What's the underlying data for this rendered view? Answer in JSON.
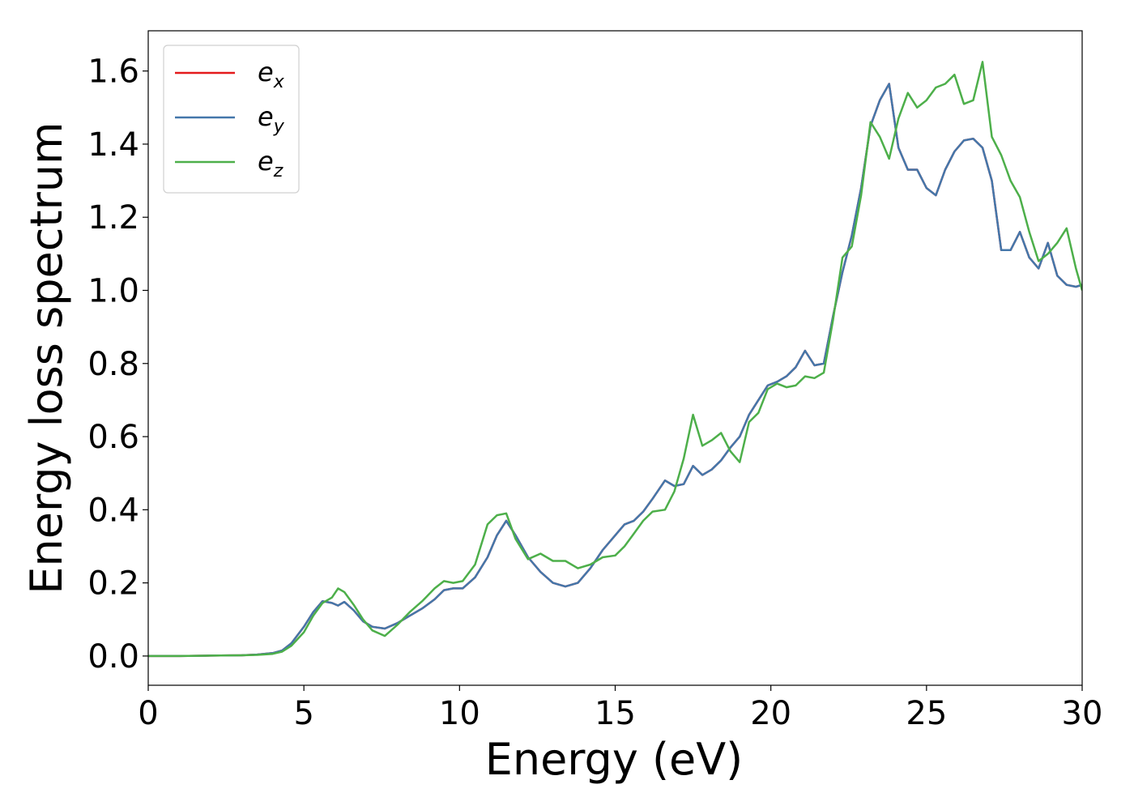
{
  "chart_data": {
    "type": "line",
    "xlabel": "Energy (eV)",
    "ylabel": "Energy loss spectrum",
    "xlim": [
      0,
      30
    ],
    "ylim": [
      -0.08,
      1.71
    ],
    "xticks": [
      0,
      5,
      10,
      15,
      20,
      25,
      30
    ],
    "xtick_labels": [
      "0",
      "5",
      "10",
      "15",
      "20",
      "25",
      "30"
    ],
    "yticks": [
      0.0,
      0.2,
      0.4,
      0.6,
      0.8,
      1.0,
      1.2,
      1.4,
      1.6
    ],
    "ytick_labels": [
      "0.0",
      "0.2",
      "0.4",
      "0.6",
      "0.8",
      "1.0",
      "1.2",
      "1.4",
      "1.6"
    ],
    "grid": false,
    "legend_position": "top-left",
    "series": [
      {
        "name": "e",
        "sub": "x",
        "color": "#e41a1c",
        "x": [
          0,
          1,
          2,
          3,
          3.5,
          4,
          4.3,
          4.6,
          5,
          5.3,
          5.6,
          5.9,
          6.1,
          6.3,
          6.6,
          6.9,
          7.2,
          7.6,
          8,
          8.4,
          8.8,
          9.2,
          9.5,
          9.8,
          10.1,
          10.5,
          10.9,
          11.2,
          11.5,
          11.8,
          12.2,
          12.6,
          13,
          13.4,
          13.8,
          14.2,
          14.6,
          15,
          15.3,
          15.6,
          15.9,
          16.2,
          16.6,
          16.9,
          17.2,
          17.5,
          17.8,
          18.1,
          18.4,
          18.7,
          19,
          19.3,
          19.6,
          19.9,
          20.2,
          20.5,
          20.8,
          21.1,
          21.4,
          21.7,
          22,
          22.3,
          22.6,
          22.9,
          23.2,
          23.5,
          23.8,
          24.1,
          24.4,
          24.7,
          25,
          25.3,
          25.6,
          25.9,
          26.2,
          26.5,
          26.8,
          27.1,
          27.4,
          27.7,
          28,
          28.3,
          28.6,
          28.9,
          29.2,
          29.5,
          29.8,
          30
        ],
        "values": [
          0.0,
          0.0,
          0.001,
          0.002,
          0.004,
          0.008,
          0.015,
          0.035,
          0.08,
          0.12,
          0.15,
          0.145,
          0.138,
          0.148,
          0.125,
          0.095,
          0.08,
          0.075,
          0.09,
          0.11,
          0.13,
          0.155,
          0.18,
          0.185,
          0.185,
          0.215,
          0.27,
          0.33,
          0.37,
          0.33,
          0.27,
          0.23,
          0.2,
          0.19,
          0.2,
          0.24,
          0.29,
          0.33,
          0.36,
          0.37,
          0.395,
          0.43,
          0.48,
          0.465,
          0.47,
          0.52,
          0.495,
          0.51,
          0.535,
          0.57,
          0.6,
          0.66,
          0.7,
          0.74,
          0.75,
          0.765,
          0.79,
          0.835,
          0.795,
          0.8,
          0.93,
          1.05,
          1.15,
          1.28,
          1.45,
          1.52,
          1.565,
          1.39,
          1.33,
          1.33,
          1.28,
          1.26,
          1.33,
          1.38,
          1.41,
          1.415,
          1.39,
          1.3,
          1.11,
          1.11,
          1.16,
          1.09,
          1.06,
          1.13,
          1.04,
          1.015,
          1.01,
          1.015
        ]
      },
      {
        "name": "e",
        "sub": "y",
        "color": "#4477aa",
        "x": [
          0,
          1,
          2,
          3,
          3.5,
          4,
          4.3,
          4.6,
          5,
          5.3,
          5.6,
          5.9,
          6.1,
          6.3,
          6.6,
          6.9,
          7.2,
          7.6,
          8,
          8.4,
          8.8,
          9.2,
          9.5,
          9.8,
          10.1,
          10.5,
          10.9,
          11.2,
          11.5,
          11.8,
          12.2,
          12.6,
          13,
          13.4,
          13.8,
          14.2,
          14.6,
          15,
          15.3,
          15.6,
          15.9,
          16.2,
          16.6,
          16.9,
          17.2,
          17.5,
          17.8,
          18.1,
          18.4,
          18.7,
          19,
          19.3,
          19.6,
          19.9,
          20.2,
          20.5,
          20.8,
          21.1,
          21.4,
          21.7,
          22,
          22.3,
          22.6,
          22.9,
          23.2,
          23.5,
          23.8,
          24.1,
          24.4,
          24.7,
          25,
          25.3,
          25.6,
          25.9,
          26.2,
          26.5,
          26.8,
          27.1,
          27.4,
          27.7,
          28,
          28.3,
          28.6,
          28.9,
          29.2,
          29.5,
          29.8,
          30
        ],
        "values": [
          0.0,
          0.0,
          0.001,
          0.002,
          0.004,
          0.008,
          0.015,
          0.035,
          0.08,
          0.12,
          0.15,
          0.145,
          0.138,
          0.148,
          0.125,
          0.095,
          0.08,
          0.075,
          0.09,
          0.11,
          0.13,
          0.155,
          0.18,
          0.185,
          0.185,
          0.215,
          0.27,
          0.33,
          0.37,
          0.33,
          0.27,
          0.23,
          0.2,
          0.19,
          0.2,
          0.24,
          0.29,
          0.33,
          0.36,
          0.37,
          0.395,
          0.43,
          0.48,
          0.465,
          0.47,
          0.52,
          0.495,
          0.51,
          0.535,
          0.57,
          0.6,
          0.66,
          0.7,
          0.74,
          0.75,
          0.765,
          0.79,
          0.835,
          0.795,
          0.8,
          0.93,
          1.05,
          1.15,
          1.28,
          1.45,
          1.52,
          1.565,
          1.39,
          1.33,
          1.33,
          1.28,
          1.26,
          1.33,
          1.38,
          1.41,
          1.415,
          1.39,
          1.3,
          1.11,
          1.11,
          1.16,
          1.09,
          1.06,
          1.13,
          1.04,
          1.015,
          1.01,
          1.015
        ]
      },
      {
        "name": "e",
        "sub": "z",
        "color": "#4daf4a",
        "x": [
          0,
          1,
          2,
          3,
          3.5,
          4,
          4.3,
          4.6,
          5,
          5.3,
          5.6,
          5.9,
          6.1,
          6.3,
          6.6,
          6.9,
          7.2,
          7.6,
          8,
          8.4,
          8.8,
          9.2,
          9.5,
          9.8,
          10.1,
          10.5,
          10.9,
          11.2,
          11.5,
          11.8,
          12.2,
          12.6,
          13,
          13.4,
          13.8,
          14.2,
          14.6,
          15,
          15.3,
          15.6,
          15.9,
          16.2,
          16.6,
          16.9,
          17.2,
          17.5,
          17.8,
          18.1,
          18.4,
          18.7,
          19,
          19.3,
          19.6,
          19.9,
          20.2,
          20.5,
          20.8,
          21.1,
          21.4,
          21.7,
          22,
          22.3,
          22.6,
          22.9,
          23.2,
          23.5,
          23.8,
          24.1,
          24.4,
          24.7,
          25,
          25.3,
          25.6,
          25.9,
          26.2,
          26.5,
          26.8,
          27.1,
          27.4,
          27.7,
          28,
          28.3,
          28.6,
          28.9,
          29.2,
          29.5,
          29.8,
          30
        ],
        "values": [
          0.0,
          0.0,
          0.001,
          0.002,
          0.003,
          0.006,
          0.012,
          0.028,
          0.065,
          0.11,
          0.145,
          0.16,
          0.185,
          0.175,
          0.14,
          0.1,
          0.07,
          0.055,
          0.085,
          0.12,
          0.15,
          0.185,
          0.205,
          0.2,
          0.205,
          0.25,
          0.36,
          0.385,
          0.39,
          0.32,
          0.265,
          0.28,
          0.26,
          0.26,
          0.24,
          0.25,
          0.27,
          0.275,
          0.3,
          0.335,
          0.37,
          0.395,
          0.4,
          0.45,
          0.54,
          0.66,
          0.575,
          0.59,
          0.61,
          0.56,
          0.53,
          0.64,
          0.665,
          0.73,
          0.745,
          0.735,
          0.74,
          0.765,
          0.76,
          0.775,
          0.92,
          1.09,
          1.12,
          1.26,
          1.46,
          1.42,
          1.36,
          1.47,
          1.54,
          1.5,
          1.52,
          1.555,
          1.565,
          1.59,
          1.51,
          1.52,
          1.625,
          1.42,
          1.37,
          1.3,
          1.255,
          1.16,
          1.08,
          1.1,
          1.13,
          1.17,
          1.06,
          1.0
        ]
      }
    ]
  }
}
